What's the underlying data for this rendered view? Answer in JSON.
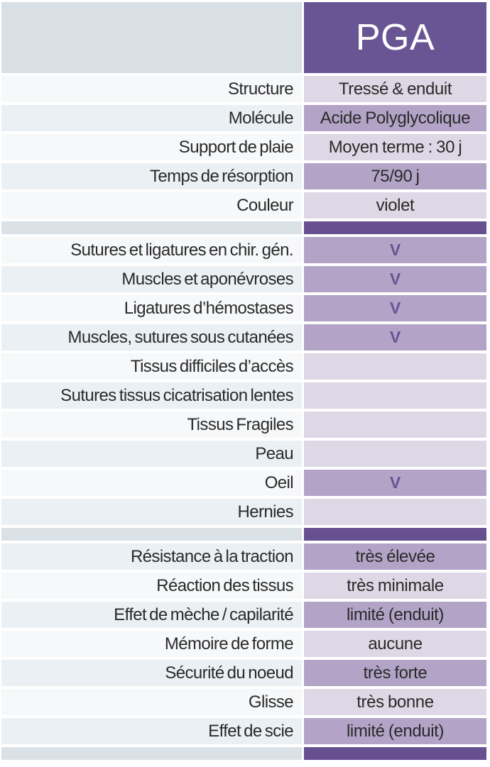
{
  "header": {
    "product_name": "PGA"
  },
  "colors": {
    "header_purple": "#6a5594",
    "separator_purple": "#66508f",
    "value_cell_light": "#ded7e5",
    "value_cell_medium": "#b3a4c7",
    "label_row_light": "#f6f8fa",
    "label_row_alt": "#eaf0f3",
    "header_left_gray": "#d8dfe5",
    "separator_left_gray": "#dbe2e7",
    "check_mark_color": "#6b5295",
    "text_color": "#2a2a2a"
  },
  "check_symbol": "V",
  "sections": [
    {
      "name": "caracteristiques",
      "rows": [
        {
          "label": "Structure",
          "value": "Tressé & enduit"
        },
        {
          "label": "Molécule",
          "value": "Acide Polyglycolique"
        },
        {
          "label": "Support de plaie",
          "value": "Moyen terme : 30 j"
        },
        {
          "label": "Temps de résorption",
          "value": "75/90 j"
        },
        {
          "label": "Couleur",
          "value": "violet"
        }
      ]
    },
    {
      "name": "applications",
      "rows": [
        {
          "label": "Sutures et ligatures en chir. gén.",
          "value": "V",
          "checked": true
        },
        {
          "label": "Muscles et aponévroses",
          "value": "V",
          "checked": true
        },
        {
          "label": "Ligatures d’hémostases",
          "value": "V",
          "checked": true
        },
        {
          "label": "Muscles, sutures sous cutanées",
          "value": "V",
          "checked": true
        },
        {
          "label": "Tissus difficiles d’accès",
          "value": "",
          "checked": false
        },
        {
          "label": "Sutures tissus cicatrisation lentes",
          "value": "",
          "checked": false
        },
        {
          "label": "Tissus Fragiles",
          "value": "",
          "checked": false
        },
        {
          "label": "Peau",
          "value": "",
          "checked": false
        },
        {
          "label": "Oeil",
          "value": "V",
          "checked": true
        },
        {
          "label": "Hernies",
          "value": "",
          "checked": false
        }
      ]
    },
    {
      "name": "proprietes",
      "rows": [
        {
          "label": "Résistance à la traction",
          "value": "très élevée"
        },
        {
          "label": "Réaction des tissus",
          "value": "très minimale"
        },
        {
          "label": "Effet de mèche / capilarité",
          "value": "limité (enduit)"
        },
        {
          "label": "Mémoire de forme",
          "value": "aucune"
        },
        {
          "label": "Sécurité du noeud",
          "value": "très forte"
        },
        {
          "label": "Glisse",
          "value": "très bonne"
        },
        {
          "label": "Effet de scie",
          "value": "limité (enduit)"
        }
      ]
    }
  ]
}
